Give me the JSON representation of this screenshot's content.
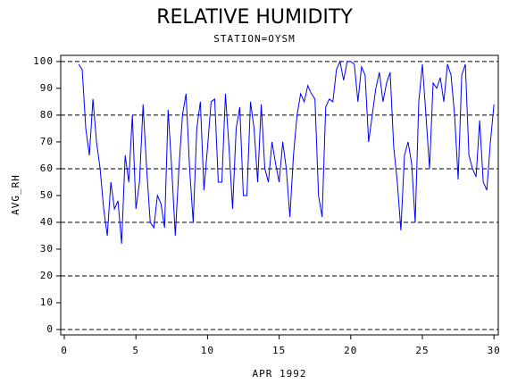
{
  "chart_data": {
    "type": "line",
    "title": "RELATIVE HUMIDITY",
    "subtitle": "STATION=OYSM",
    "x_label": "APR 1992",
    "y_label": "AVG_RH",
    "x": [
      1,
      1.25,
      1.5,
      1.75,
      2,
      2.25,
      2.5,
      2.75,
      3,
      3.25,
      3.5,
      3.75,
      4,
      4.25,
      4.5,
      4.75,
      5,
      5.25,
      5.5,
      5.75,
      6,
      6.25,
      6.5,
      6.75,
      7,
      7.25,
      7.5,
      7.75,
      8,
      8.25,
      8.5,
      8.75,
      9,
      9.25,
      9.5,
      9.75,
      10,
      10.25,
      10.5,
      10.75,
      11,
      11.25,
      11.5,
      11.75,
      12,
      12.25,
      12.5,
      12.75,
      13,
      13.25,
      13.5,
      13.75,
      14,
      14.25,
      14.5,
      14.75,
      15,
      15.25,
      15.5,
      15.75,
      16,
      16.25,
      16.5,
      16.75,
      17,
      17.25,
      17.5,
      17.75,
      18,
      18.25,
      18.5,
      18.75,
      19,
      19.25,
      19.5,
      19.75,
      20,
      20.25,
      20.5,
      20.75,
      21,
      21.25,
      21.5,
      21.75,
      22,
      22.25,
      22.5,
      22.75,
      23,
      23.25,
      23.5,
      23.75,
      24,
      24.25,
      24.5,
      24.75,
      25,
      25.25,
      25.5,
      25.75,
      26,
      26.25,
      26.5,
      26.75,
      27,
      27.25,
      27.5,
      27.75,
      28,
      28.25,
      28.5,
      28.75,
      29,
      29.25,
      29.5,
      29.75,
      30
    ],
    "series": [
      {
        "name": "AVG_RH",
        "color": "#0000ff",
        "values": [
          99,
          97,
          75,
          65,
          86,
          70,
          60,
          45,
          35,
          55,
          45,
          48,
          32,
          65,
          55,
          80,
          45,
          55,
          84,
          60,
          40,
          38,
          50,
          47,
          38,
          82,
          60,
          35,
          60,
          80,
          88,
          60,
          40,
          75,
          85,
          52,
          68,
          85,
          86,
          55,
          55,
          88,
          68,
          45,
          75,
          83,
          50,
          50,
          85,
          75,
          55,
          84,
          60,
          55,
          70,
          62,
          55,
          70,
          60,
          42,
          65,
          80,
          88,
          85,
          91,
          88,
          86,
          50,
          42,
          83,
          86,
          85,
          97,
          100,
          93,
          100,
          100,
          99,
          85,
          98,
          95,
          70,
          80,
          90,
          96,
          85,
          92,
          96,
          68,
          55,
          37,
          65,
          70,
          62,
          40,
          85,
          99,
          80,
          60,
          92,
          90,
          94,
          85,
          99,
          95,
          80,
          56,
          95,
          99,
          65,
          60,
          57,
          78,
          55,
          52,
          70,
          84
        ]
      }
    ],
    "xlim": [
      -0.25,
      30.3
    ],
    "xticks": [
      0,
      5,
      10,
      15,
      20,
      25,
      30
    ],
    "ylim": [
      -2,
      102.3
    ],
    "yticks": [
      0,
      10,
      20,
      30,
      40,
      50,
      60,
      70,
      80,
      90,
      100
    ],
    "reference_lines": [
      0,
      20,
      40,
      60,
      80,
      100
    ]
  }
}
